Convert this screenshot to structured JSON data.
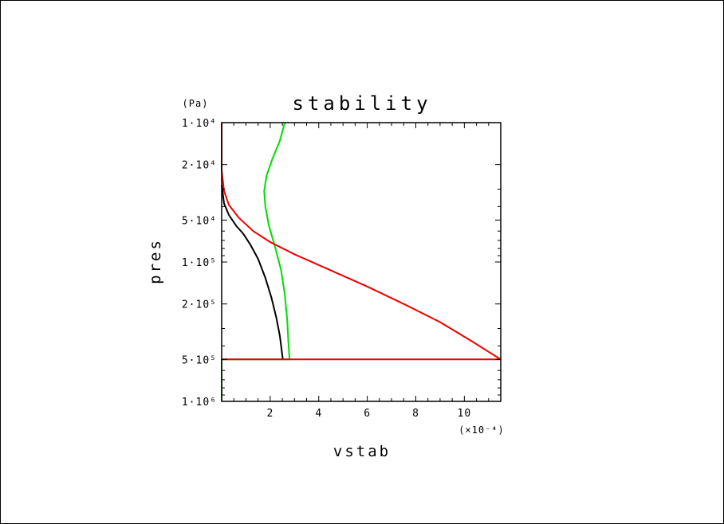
{
  "chart_data": {
    "type": "line",
    "title": "stability",
    "xlabel": "vstab",
    "ylabel": "pres",
    "y_unit": "(Pa)",
    "x_multiplier": "(×10⁻⁴)",
    "x_scale": "linear",
    "y_scale": "log",
    "y_inverted": true,
    "xlim": [
      0,
      11.5
    ],
    "ylim": [
      10000,
      1000000
    ],
    "x_ticks": [
      2,
      4,
      6,
      8,
      10
    ],
    "x_tick_labels": [
      "2",
      "4",
      "6",
      "8",
      "10"
    ],
    "y_ticks": [
      10000,
      20000,
      50000,
      100000,
      200000,
      500000,
      1000000
    ],
    "y_tick_labels": [
      "1·10⁴",
      "2·10⁴",
      "5·10⁴",
      "1·10⁵",
      "2·10⁵",
      "5·10⁵",
      "1·10⁶"
    ],
    "grid": false,
    "series": [
      {
        "color": "#000000",
        "points": [
          [
            0.0,
            28000
          ],
          [
            0.1,
            38000
          ],
          [
            0.3,
            46000
          ],
          [
            0.6,
            55000
          ],
          [
            0.9,
            63000
          ],
          [
            1.2,
            76000
          ],
          [
            1.5,
            95000
          ],
          [
            1.8,
            130000
          ],
          [
            2.05,
            180000
          ],
          [
            2.25,
            250000
          ],
          [
            2.4,
            340000
          ],
          [
            2.52,
            500000
          ]
        ]
      },
      {
        "color": "#00dd00",
        "points": [
          [
            2.6,
            10000
          ],
          [
            2.4,
            13500
          ],
          [
            2.1,
            18000
          ],
          [
            1.85,
            24000
          ],
          [
            1.75,
            31000
          ],
          [
            1.8,
            40000
          ],
          [
            1.95,
            55000
          ],
          [
            2.2,
            78000
          ],
          [
            2.45,
            115000
          ],
          [
            2.6,
            170000
          ],
          [
            2.7,
            260000
          ],
          [
            2.75,
            380000
          ],
          [
            2.8,
            500000
          ]
        ]
      },
      {
        "color": "#00dd00",
        "points": [
          [
            2.8,
            500000
          ],
          [
            0.0,
            500000
          ],
          [
            0.0,
            1000000
          ]
        ]
      },
      {
        "color": "#ee0000",
        "points": [
          [
            0.0,
            10000
          ],
          [
            0.0,
            22000
          ],
          [
            0.1,
            31000
          ],
          [
            0.3,
            39000
          ],
          [
            0.7,
            48000
          ],
          [
            1.3,
            60000
          ],
          [
            2.0,
            72000
          ],
          [
            3.0,
            88000
          ],
          [
            4.5,
            115000
          ],
          [
            6.0,
            150000
          ],
          [
            7.5,
            200000
          ],
          [
            9.0,
            270000
          ],
          [
            10.3,
            370000
          ],
          [
            11.5,
            500000
          ],
          [
            0.0,
            500000
          ]
        ]
      }
    ]
  }
}
